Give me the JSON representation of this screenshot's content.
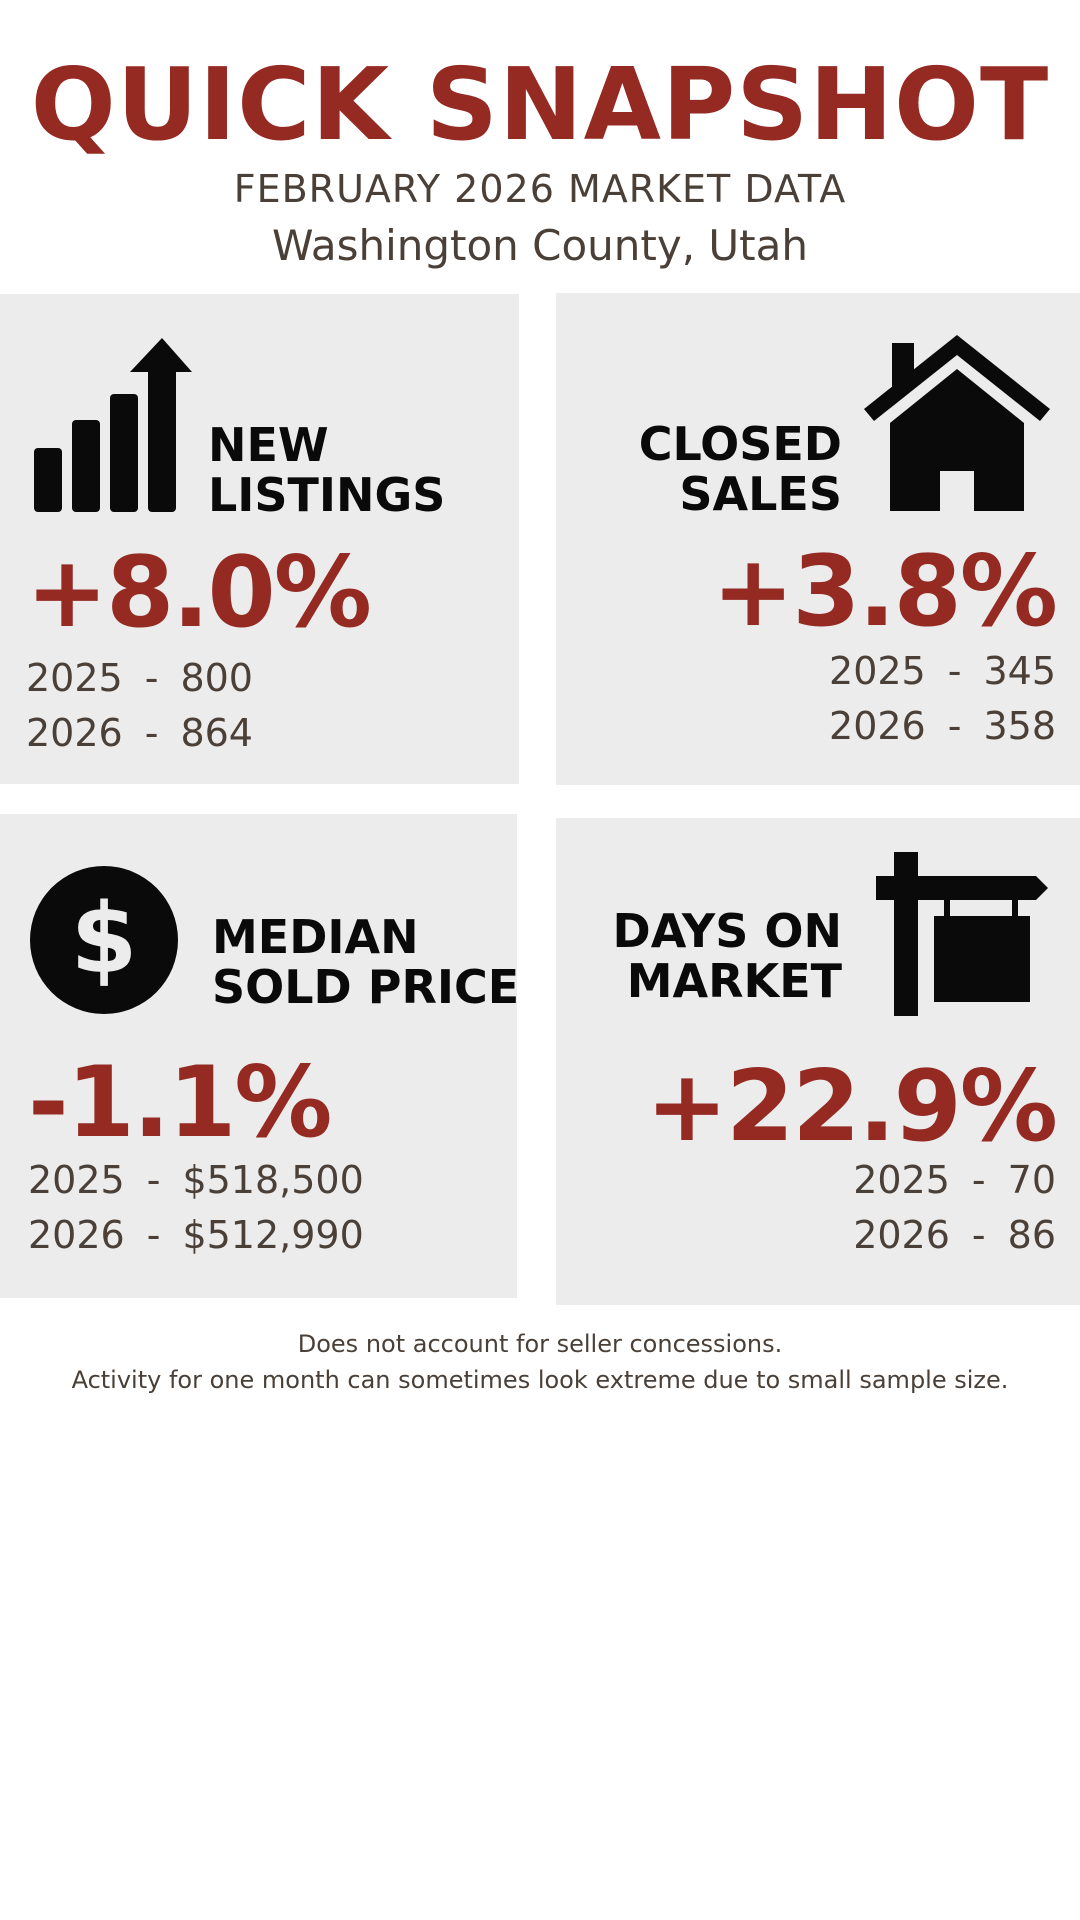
{
  "header": {
    "title": "QUICK SNAPSHOT",
    "subtitle": "FEBRUARY 2026 MARKET DATA",
    "location": "Washington County, Utah"
  },
  "colors": {
    "accent": "#952a23",
    "card_bg": "#ececec",
    "text": "#4a4038",
    "icon": "#0a0a0a"
  },
  "cards": {
    "new_listings": {
      "icon": "bar-chart-up-arrow-icon",
      "label_line1": "NEW",
      "label_line2": "LISTINGS",
      "change": "+8.0%",
      "year1": "2025",
      "value1": "800",
      "year2": "2026",
      "value2": "864"
    },
    "closed_sales": {
      "icon": "house-icon",
      "label_line1": "CLOSED",
      "label_line2": "SALES",
      "change": "+3.8%",
      "year1": "2025",
      "value1": "345",
      "year2": "2026",
      "value2": "358"
    },
    "median_price": {
      "icon": "dollar-circle-icon",
      "label_line1": "MEDIAN",
      "label_line2": "SOLD PRICE",
      "change": "-1.1%",
      "year1": "2025",
      "value1": "$518,500",
      "year2": "2026",
      "value2": "$512,990"
    },
    "days_on_market": {
      "icon": "hanging-sign-icon",
      "label_line1": "DAYS ON",
      "label_line2": "MARKET",
      "change": "+22.9%",
      "year1": "2025",
      "value1": "70",
      "year2": "2026",
      "value2": "86"
    }
  },
  "dash": "-",
  "footer": {
    "line1": "Does not account for seller concessions.",
    "line2": "Activity for one month can sometimes look extreme due to small sample size."
  }
}
